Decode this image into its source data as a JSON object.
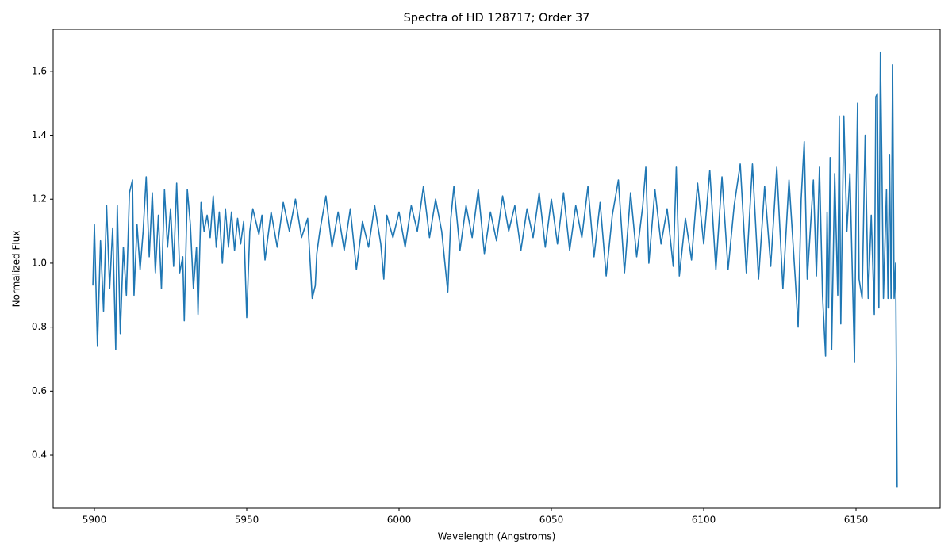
{
  "chart_data": {
    "type": "line",
    "title": "Spectra of HD 128717; Order 37",
    "x_label": "Wavelength (Angstroms)",
    "y_label": "Normalized Flux",
    "color": "#1f77b4",
    "xlim": [
      5886.46,
      6177.6
    ],
    "ylim": [
      0.234,
      1.731
    ],
    "xticks": [
      5900,
      5950,
      6000,
      6050,
      6100,
      6150
    ],
    "yticks": [
      0.4,
      0.6,
      0.8,
      {
        "value": 1,
        "label": "1.0"
      },
      1.2,
      1.4,
      1.6
    ],
    "x": [
      5899.5,
      5900,
      5901,
      5902,
      5903,
      5904,
      5905,
      5906,
      5907,
      5907.5,
      5908.5,
      5909.5,
      5910.5,
      5911.5,
      5912.5,
      5913,
      5914,
      5915,
      5916,
      5917,
      5918,
      5919,
      5920,
      5921,
      5922,
      5923,
      5924,
      5925,
      5926,
      5927,
      5928,
      5929,
      5929.5,
      5930.5,
      5931.5,
      5932.5,
      5933.5,
      5934,
      5935,
      5936,
      5937,
      5938,
      5939,
      5940,
      5941,
      5942,
      5943,
      5944,
      5945,
      5946,
      5947,
      5948,
      5949,
      5950,
      5951,
      5952,
      5954,
      5955,
      5956,
      5958,
      5960,
      5962,
      5964,
      5966,
      5968,
      5970,
      5971.5,
      5972.5,
      5973,
      5974,
      5976,
      5978,
      5980,
      5982,
      5984,
      5986,
      5988,
      5990,
      5992,
      5994,
      5995,
      5996,
      5998,
      6000,
      6002,
      6004,
      6006,
      6008,
      6010,
      6012,
      6014,
      6016,
      6017,
      6018,
      6020,
      6022,
      6024,
      6026,
      6028,
      6030,
      6032,
      6034,
      6036,
      6038,
      6040,
      6042,
      6044,
      6046,
      6048,
      6050,
      6052,
      6054,
      6056,
      6058,
      6060,
      6062,
      6064,
      6066,
      6068,
      6070,
      6072,
      6074,
      6076,
      6078,
      6080,
      6081,
      6082,
      6084,
      6086,
      6088,
      6090,
      6091,
      6092,
      6094,
      6096,
      6098,
      6100,
      6102,
      6104,
      6106,
      6108,
      6110,
      6112,
      6114,
      6116,
      6118,
      6120,
      6122,
      6124,
      6126,
      6128,
      6130,
      6131,
      6132,
      6133,
      6134,
      6136,
      6137,
      6138,
      6139,
      6140,
      6140.5,
      6141,
      6141.5,
      6142,
      6143,
      6144,
      6144.5,
      6145,
      6146,
      6147,
      6148,
      6149.5,
      6150,
      6150.5,
      6151,
      6152,
      6153,
      6154,
      6155,
      6156,
      6156.5,
      6157,
      6157.5,
      6158,
      6158.5,
      6159,
      6160,
      6160.5,
      6161,
      6161.5,
      6162,
      6162.5,
      6163,
      6163.5
    ],
    "values": [
      0.93,
      1.12,
      0.74,
      1.07,
      0.85,
      1.18,
      0.92,
      1.11,
      0.73,
      1.18,
      0.78,
      1.05,
      0.9,
      1.22,
      1.26,
      0.9,
      1.12,
      0.98,
      1.1,
      1.27,
      1.02,
      1.22,
      0.97,
      1.15,
      0.92,
      1.23,
      1.05,
      1.17,
      0.99,
      1.25,
      0.97,
      1.02,
      0.82,
      1.23,
      1.12,
      0.92,
      1.05,
      0.84,
      1.19,
      1.1,
      1.15,
      1.08,
      1.21,
      1.05,
      1.16,
      1.0,
      1.17,
      1.05,
      1.16,
      1.04,
      1.14,
      1.06,
      1.13,
      0.83,
      1.1,
      1.17,
      1.09,
      1.15,
      1.01,
      1.16,
      1.05,
      1.19,
      1.1,
      1.2,
      1.08,
      1.14,
      0.89,
      0.93,
      1.03,
      1.1,
      1.21,
      1.05,
      1.16,
      1.04,
      1.17,
      0.98,
      1.13,
      1.05,
      1.18,
      1.06,
      0.95,
      1.15,
      1.08,
      1.16,
      1.05,
      1.18,
      1.1,
      1.24,
      1.08,
      1.2,
      1.1,
      0.91,
      1.14,
      1.24,
      1.04,
      1.18,
      1.08,
      1.23,
      1.03,
      1.16,
      1.07,
      1.21,
      1.1,
      1.18,
      1.04,
      1.17,
      1.08,
      1.22,
      1.05,
      1.2,
      1.06,
      1.22,
      1.04,
      1.18,
      1.08,
      1.24,
      1.02,
      1.19,
      0.96,
      1.15,
      1.26,
      0.97,
      1.22,
      1.02,
      1.18,
      1.3,
      1.0,
      1.23,
      1.06,
      1.17,
      0.99,
      1.3,
      0.96,
      1.14,
      1.01,
      1.25,
      1.06,
      1.29,
      0.98,
      1.27,
      0.98,
      1.18,
      1.31,
      0.97,
      1.31,
      0.95,
      1.24,
      0.99,
      1.3,
      0.92,
      1.26,
      0.96,
      0.8,
      1.2,
      1.38,
      0.95,
      1.26,
      0.96,
      1.3,
      0.9,
      0.71,
      1.16,
      0.86,
      1.33,
      0.73,
      1.28,
      0.9,
      1.46,
      0.81,
      1.46,
      1.1,
      1.28,
      0.69,
      1.18,
      1.5,
      0.95,
      0.89,
      1.4,
      0.89,
      1.15,
      0.84,
      1.52,
      1.53,
      0.86,
      1.66,
      1.3,
      0.89,
      1.23,
      0.89,
      1.34,
      0.89,
      1.62,
      0.89,
      1.0,
      0.3
    ]
  }
}
